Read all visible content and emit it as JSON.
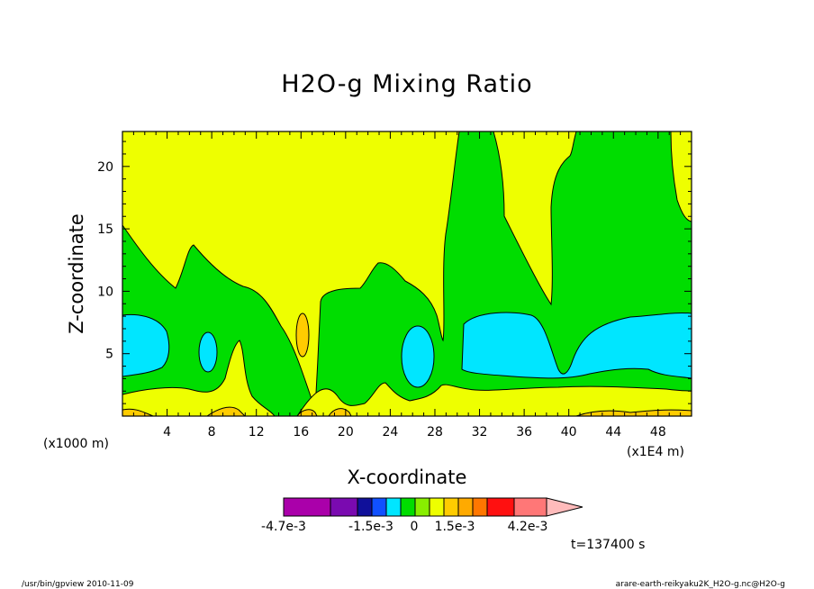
{
  "chart_data": {
    "type": "heatmap",
    "title": "H2O-g Mixing Ratio",
    "xlabel": "X-coordinate",
    "ylabel": "Z-coordinate",
    "x_scale_label": "(x1000 m)",
    "x_unit_label": "(x1E4 m)",
    "x_ticks": [
      4,
      8,
      12,
      16,
      20,
      24,
      28,
      32,
      36,
      40,
      44,
      48
    ],
    "y_ticks": [
      5,
      10,
      15,
      20
    ],
    "xlim": [
      0,
      51
    ],
    "ylim": [
      0,
      22.8
    ],
    "colorbar": {
      "colors": [
        "#aa00aa",
        "#7a0ab0",
        "#10109a",
        "#1050ff",
        "#00e6ff",
        "#00dd00",
        "#88ee00",
        "#eeff00",
        "#ffcc00",
        "#ffaa00",
        "#ff7700",
        "#ff1010",
        "#ff7777",
        "#ffbbbb"
      ],
      "labels": [
        {
          "text": "-4.7e-3",
          "value": -0.0047
        },
        {
          "text": "-1.5e-3",
          "value": -0.0015
        },
        {
          "text": "0",
          "value": 0
        },
        {
          "text": "1.5e-3",
          "value": 0.0015
        },
        {
          "text": "4.2e-3",
          "value": 0.0042
        }
      ]
    },
    "time_label": "t=137400 s"
  },
  "footer": {
    "left": "/usr/bin/gpview  2010-11-09",
    "right": "arare-earth-reikyaku2K_H2O-g.nc@H2O-g"
  }
}
